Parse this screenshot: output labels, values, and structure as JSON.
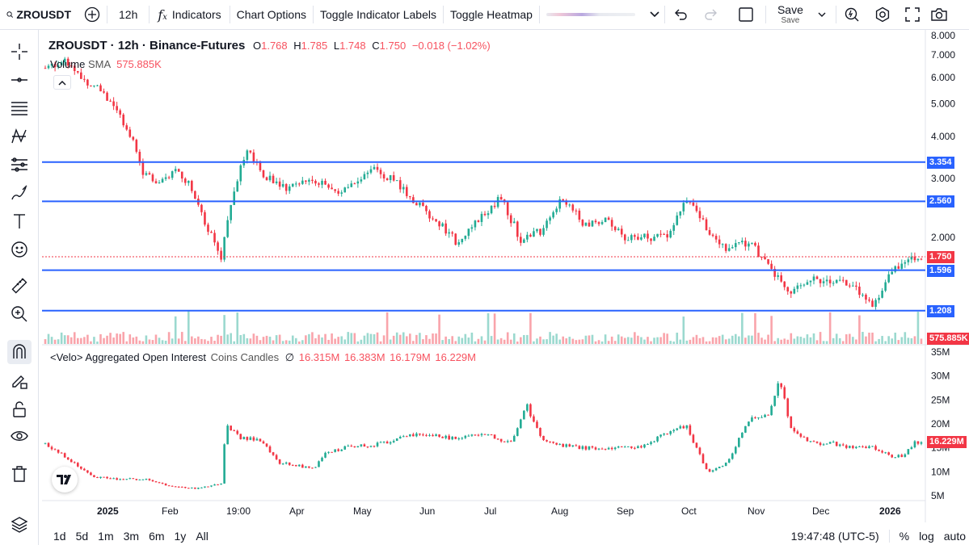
{
  "toolbar": {
    "symbol": "ZROUSDT",
    "interval": "12h",
    "indicators": "Indicators",
    "chart_options": "Chart Options",
    "toggle_labels": "Toggle Indicator Labels",
    "toggle_heatmap": "Toggle Heatmap",
    "save": "Save",
    "save_sub": "Save"
  },
  "legend": {
    "title": "ZROUSDT · 12h · Binance-Futures",
    "o_label": "O",
    "o": "1.768",
    "h_label": "H",
    "h": "1.785",
    "l_label": "L",
    "l": "1.748",
    "c_label": "C",
    "c": "1.750",
    "change": "−0.018 (−1.02%)",
    "volume_label": "Volume",
    "sma_label": "SMA",
    "volume_value": "575.885K"
  },
  "oi_legend": {
    "title": "<Velo> Aggregated Open Interest",
    "subtitle": "Coins Candles",
    "o_mark": "∅",
    "o": "16.315M",
    "h": "16.383M",
    "l": "16.179M",
    "c": "16.229M"
  },
  "price_axis": {
    "ticks": [
      "8.000",
      "7.000",
      "6.000",
      "5.000",
      "4.000",
      "3.000",
      "2.000"
    ],
    "tick_values": [
      8,
      7,
      6,
      5,
      4,
      3,
      2
    ]
  },
  "oi_axis": {
    "ticks": [
      "35M",
      "30M",
      "25M",
      "20M",
      "15M",
      "10M",
      "5M"
    ],
    "tick_values": [
      35,
      30,
      25,
      20,
      15,
      10,
      5
    ]
  },
  "levels": [
    {
      "value": 3.354,
      "label": "3.354"
    },
    {
      "value": 2.56,
      "label": "2.560"
    },
    {
      "value": 1.596,
      "label": "1.596"
    },
    {
      "value": 1.208,
      "label": "1.208"
    }
  ],
  "last_price": {
    "value": 1.75,
    "label": "1.750",
    "color": "#f23645"
  },
  "volume_tag": "575.885K",
  "oi_tag": "16.229M",
  "time_axis": [
    "2025",
    "Feb",
    "19:00",
    "Apr",
    "May",
    "Jun",
    "Jul",
    "Aug",
    "Sep",
    "Oct",
    "Nov",
    "Dec",
    "2026"
  ],
  "ranges": [
    "1d",
    "5d",
    "1m",
    "3m",
    "6m",
    "1y",
    "All"
  ],
  "clock": "19:47:48 (UTC-5)",
  "scale_options": [
    "%",
    "log",
    "auto"
  ],
  "colors": {
    "up": "#22ab94",
    "down": "#f23645",
    "level": "#2962ff",
    "legend_value": "#f7525f",
    "brand_green": "#089981"
  },
  "price_path": [
    [
      2024.96,
      6.4
    ],
    [
      2025.0,
      6.8
    ],
    [
      2025.03,
      6.0
    ],
    [
      2025.06,
      5.6
    ],
    [
      2025.09,
      5.0
    ],
    [
      2025.12,
      4.2
    ],
    [
      2025.15,
      3.1
    ],
    [
      2025.18,
      2.9
    ],
    [
      2025.21,
      3.2
    ],
    [
      2025.24,
      2.9
    ],
    [
      2025.27,
      2.2
    ],
    [
      2025.3,
      1.75
    ],
    [
      2025.32,
      2.6
    ],
    [
      2025.35,
      3.6
    ],
    [
      2025.38,
      3.1
    ],
    [
      2025.42,
      2.8
    ],
    [
      2025.45,
      2.9
    ],
    [
      2025.48,
      3.0
    ],
    [
      2025.52,
      2.7
    ],
    [
      2025.56,
      2.9
    ],
    [
      2025.6,
      3.2
    ],
    [
      2025.64,
      2.9
    ],
    [
      2025.68,
      2.5
    ],
    [
      2025.72,
      2.2
    ],
    [
      2025.76,
      1.9
    ],
    [
      2025.8,
      2.3
    ],
    [
      2025.84,
      2.6
    ],
    [
      2025.88,
      1.95
    ],
    [
      2025.92,
      2.1
    ],
    [
      2025.96,
      2.6
    ],
    [
      2026.0,
      2.2
    ],
    [
      2026.04,
      2.25
    ],
    [
      2026.08,
      2.0
    ],
    [
      2026.12,
      2.0
    ],
    [
      2026.16,
      2.0
    ],
    [
      2026.2,
      2.6
    ],
    [
      2026.24,
      2.1
    ],
    [
      2026.28,
      1.85
    ],
    [
      2026.32,
      1.95
    ],
    [
      2026.36,
      1.6
    ],
    [
      2026.4,
      1.35
    ],
    [
      2026.44,
      1.5
    ],
    [
      2026.48,
      1.5
    ],
    [
      2026.52,
      1.45
    ],
    [
      2026.56,
      1.25
    ],
    [
      2026.6,
      1.6
    ],
    [
      2026.64,
      1.75
    ]
  ],
  "oi_path": [
    [
      2024.96,
      16
    ],
    [
      2025.0,
      13
    ],
    [
      2025.05,
      9
    ],
    [
      2025.1,
      8.5
    ],
    [
      2025.15,
      8.5
    ],
    [
      2025.2,
      7
    ],
    [
      2025.25,
      6.5
    ],
    [
      2025.3,
      7.5
    ],
    [
      2025.31,
      20
    ],
    [
      2025.34,
      17
    ],
    [
      2025.38,
      16.5
    ],
    [
      2025.41,
      12
    ],
    [
      2025.44,
      11.5
    ],
    [
      2025.48,
      10.5
    ],
    [
      2025.5,
      14
    ],
    [
      2025.54,
      15
    ],
    [
      2025.58,
      15.5
    ],
    [
      2025.62,
      16
    ],
    [
      2025.66,
      17.5
    ],
    [
      2025.7,
      18
    ],
    [
      2025.74,
      17
    ],
    [
      2025.78,
      17.5
    ],
    [
      2025.82,
      17.5
    ],
    [
      2025.86,
      16
    ],
    [
      2025.89,
      24
    ],
    [
      2025.92,
      17
    ],
    [
      2025.96,
      15.5
    ],
    [
      2026.0,
      15
    ],
    [
      2026.04,
      15
    ],
    [
      2026.08,
      15
    ],
    [
      2026.12,
      15.5
    ],
    [
      2026.16,
      18
    ],
    [
      2026.2,
      19.5
    ],
    [
      2026.24,
      10
    ],
    [
      2026.28,
      12
    ],
    [
      2026.32,
      21
    ],
    [
      2026.36,
      22
    ],
    [
      2026.38,
      30
    ],
    [
      2026.4,
      19
    ],
    [
      2026.44,
      16
    ],
    [
      2026.48,
      16
    ],
    [
      2026.52,
      15
    ],
    [
      2026.56,
      15
    ],
    [
      2026.6,
      13
    ],
    [
      2026.62,
      13.5
    ],
    [
      2026.64,
      16.2
    ]
  ]
}
